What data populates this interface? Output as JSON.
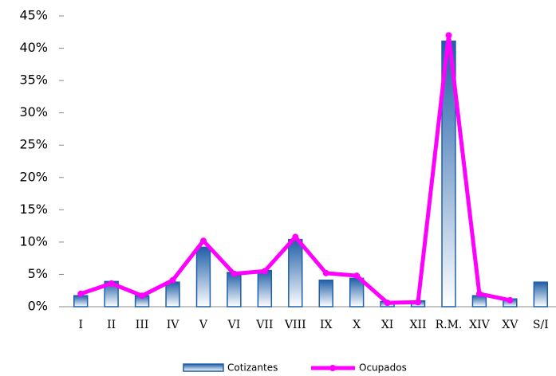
{
  "chart_data": {
    "type": "bar-line",
    "categories": [
      "I",
      "II",
      "III",
      "IV",
      "V",
      "VI",
      "VII",
      "VIII",
      "IX",
      "X",
      "XI",
      "XII",
      "R.M.",
      "XIV",
      "XV",
      "S/I"
    ],
    "series": [
      {
        "name": "Cotizantes",
        "type": "bar",
        "color": "#1f5fa8",
        "values": [
          1.7,
          3.9,
          1.7,
          3.8,
          9.2,
          5.3,
          5.6,
          10.4,
          4.1,
          4.4,
          0.8,
          0.9,
          41.1,
          1.7,
          1.2,
          3.8
        ]
      },
      {
        "name": "Ocupados",
        "type": "line",
        "color": "#ff00ff",
        "values": [
          2.0,
          3.6,
          1.7,
          4.1,
          10.2,
          5.1,
          5.5,
          10.8,
          5.2,
          4.8,
          0.6,
          0.7,
          42.0,
          2.0,
          1.0,
          null
        ]
      }
    ],
    "ylim": [
      0,
      45
    ],
    "yticks": [
      {
        "value": 0,
        "label": "0%"
      },
      {
        "value": 5,
        "label": "5%"
      },
      {
        "value": 10,
        "label": "10%"
      },
      {
        "value": 15,
        "label": "15%"
      },
      {
        "value": 20,
        "label": "20%"
      },
      {
        "value": 25,
        "label": "25%"
      },
      {
        "value": 30,
        "label": "30%"
      },
      {
        "value": 35,
        "label": "35%"
      },
      {
        "value": 40,
        "label": "40%"
      },
      {
        "value": 45,
        "label": "45%"
      }
    ],
    "legend": "bottom"
  }
}
